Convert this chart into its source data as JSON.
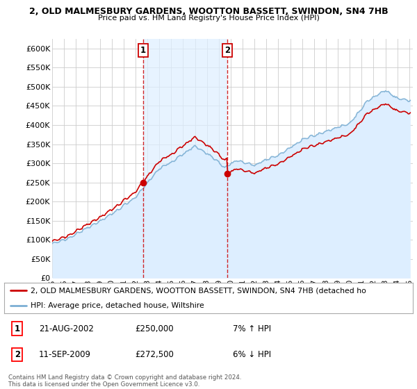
{
  "title1": "2, OLD MALMESBURY GARDENS, WOOTTON BASSETT, SWINDON, SN4 7HB",
  "title2": "Price paid vs. HM Land Registry's House Price Index (HPI)",
  "ylabel_ticks": [
    "£0",
    "£50K",
    "£100K",
    "£150K",
    "£200K",
    "£250K",
    "£300K",
    "£350K",
    "£400K",
    "£450K",
    "£500K",
    "£550K",
    "£600K"
  ],
  "ytick_vals": [
    0,
    50000,
    100000,
    150000,
    200000,
    250000,
    300000,
    350000,
    400000,
    450000,
    500000,
    550000,
    600000
  ],
  "ylim": [
    0,
    625000
  ],
  "purchase1_date": 2002.65,
  "purchase1_price": 250000,
  "purchase2_date": 2009.72,
  "purchase2_price": 272500,
  "bg_color": "#ffffff",
  "fill_color": "#ddeeff",
  "hpi_line_color": "#7bafd4",
  "hpi_fill_color": "#ddeeff",
  "price_color": "#cc0000",
  "grid_color": "#cccccc",
  "legend_line1": "2, OLD MALMESBURY GARDENS, WOOTTON BASSETT, SWINDON, SN4 7HB (detached ho",
  "legend_line2": "HPI: Average price, detached house, Wiltshire",
  "annotation1_date": "21-AUG-2002",
  "annotation1_price": "£250,000",
  "annotation1_hpi": "7% ↑ HPI",
  "annotation2_date": "11-SEP-2009",
  "annotation2_price": "£272,500",
  "annotation2_hpi": "6% ↓ HPI",
  "footer": "Contains HM Land Registry data © Crown copyright and database right 2024.\nThis data is licensed under the Open Government Licence v3.0."
}
